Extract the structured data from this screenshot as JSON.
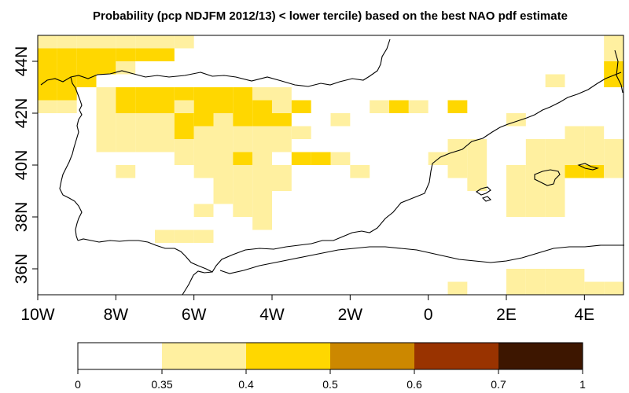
{
  "title": "Probability (pcp NDJFM 2012/13) < lower tercile) based on the best NAO pdf estimate",
  "colors": {
    "background": "#ffffff",
    "coast": "#000000",
    "bins": [
      "#ffffff",
      "#fff0a0",
      "#ffd700",
      "#cc8800",
      "#993300",
      "#3d1600"
    ]
  },
  "chart_data": {
    "type": "heatmap",
    "x_range": [
      -10,
      5
    ],
    "y_range": [
      35,
      45
    ],
    "x_ticks": [
      "10W",
      "8W",
      "6W",
      "4W",
      "2W",
      "0",
      "2E",
      "4E"
    ],
    "y_ticks": [
      "36N",
      "38N",
      "40N",
      "42N",
      "44N"
    ],
    "grid_step_deg": 0.5,
    "colorbar": {
      "breaks": [
        "0",
        "0.35",
        "0.4",
        "0.5",
        "0.6",
        "0.7",
        "1"
      ]
    },
    "cells": [
      {
        "lon": -10.0,
        "lat": 44.5,
        "bin": 1
      },
      {
        "lon": -9.5,
        "lat": 44.5,
        "bin": 1
      },
      {
        "lon": -9.0,
        "lat": 44.5,
        "bin": 1
      },
      {
        "lon": -8.5,
        "lat": 44.5,
        "bin": 1
      },
      {
        "lon": -8.0,
        "lat": 44.5,
        "bin": 1
      },
      {
        "lon": -7.5,
        "lat": 44.5,
        "bin": 1
      },
      {
        "lon": -7.0,
        "lat": 44.5,
        "bin": 1
      },
      {
        "lon": -6.5,
        "lat": 44.5,
        "bin": 1
      },
      {
        "lon": -10.0,
        "lat": 44.0,
        "bin": 2
      },
      {
        "lon": -9.5,
        "lat": 44.0,
        "bin": 2
      },
      {
        "lon": -9.0,
        "lat": 44.0,
        "bin": 2
      },
      {
        "lon": -8.5,
        "lat": 44.0,
        "bin": 2
      },
      {
        "lon": -8.0,
        "lat": 44.0,
        "bin": 2
      },
      {
        "lon": -7.5,
        "lat": 44.0,
        "bin": 2
      },
      {
        "lon": -7.0,
        "lat": 44.0,
        "bin": 2
      },
      {
        "lon": -10.0,
        "lat": 43.5,
        "bin": 2
      },
      {
        "lon": -9.5,
        "lat": 43.5,
        "bin": 2
      },
      {
        "lon": -9.0,
        "lat": 43.5,
        "bin": 2
      },
      {
        "lon": -8.5,
        "lat": 43.5,
        "bin": 2
      },
      {
        "lon": -8.0,
        "lat": 43.5,
        "bin": 1
      },
      {
        "lon": -10.0,
        "lat": 43.0,
        "bin": 2
      },
      {
        "lon": -9.5,
        "lat": 43.0,
        "bin": 2
      },
      {
        "lon": -9.0,
        "lat": 43.0,
        "bin": 2
      },
      {
        "lon": -10.0,
        "lat": 42.5,
        "bin": 2
      },
      {
        "lon": -9.5,
        "lat": 42.5,
        "bin": 2
      },
      {
        "lon": -8.5,
        "lat": 42.5,
        "bin": 1
      },
      {
        "lon": -8.0,
        "lat": 42.5,
        "bin": 2
      },
      {
        "lon": -7.5,
        "lat": 42.5,
        "bin": 2
      },
      {
        "lon": -7.0,
        "lat": 42.5,
        "bin": 2
      },
      {
        "lon": -6.5,
        "lat": 42.5,
        "bin": 2
      },
      {
        "lon": -6.0,
        "lat": 42.5,
        "bin": 2
      },
      {
        "lon": -5.5,
        "lat": 42.5,
        "bin": 2
      },
      {
        "lon": -5.0,
        "lat": 42.5,
        "bin": 2
      },
      {
        "lon": -4.5,
        "lat": 42.5,
        "bin": 1
      },
      {
        "lon": -4.0,
        "lat": 42.5,
        "bin": 1
      },
      {
        "lon": -10.0,
        "lat": 42.0,
        "bin": 1
      },
      {
        "lon": -9.5,
        "lat": 42.0,
        "bin": 1
      },
      {
        "lon": -8.5,
        "lat": 42.0,
        "bin": 1
      },
      {
        "lon": -8.0,
        "lat": 42.0,
        "bin": 2
      },
      {
        "lon": -7.5,
        "lat": 42.0,
        "bin": 2
      },
      {
        "lon": -7.0,
        "lat": 42.0,
        "bin": 2
      },
      {
        "lon": -6.5,
        "lat": 42.0,
        "bin": 1
      },
      {
        "lon": -6.0,
        "lat": 42.0,
        "bin": 2
      },
      {
        "lon": -5.5,
        "lat": 42.0,
        "bin": 2
      },
      {
        "lon": -5.0,
        "lat": 42.0,
        "bin": 2
      },
      {
        "lon": -4.5,
        "lat": 42.0,
        "bin": 2
      },
      {
        "lon": -4.0,
        "lat": 42.0,
        "bin": 1
      },
      {
        "lon": -3.5,
        "lat": 42.0,
        "bin": 2
      },
      {
        "lon": -1.5,
        "lat": 42.0,
        "bin": 1
      },
      {
        "lon": -1.0,
        "lat": 42.0,
        "bin": 2
      },
      {
        "lon": -0.5,
        "lat": 42.0,
        "bin": 1
      },
      {
        "lon": 0.5,
        "lat": 42.0,
        "bin": 2
      },
      {
        "lon": -8.5,
        "lat": 41.5,
        "bin": 1
      },
      {
        "lon": -8.0,
        "lat": 41.5,
        "bin": 1
      },
      {
        "lon": -7.5,
        "lat": 41.5,
        "bin": 1
      },
      {
        "lon": -7.0,
        "lat": 41.5,
        "bin": 1
      },
      {
        "lon": -6.5,
        "lat": 41.5,
        "bin": 2
      },
      {
        "lon": -6.0,
        "lat": 41.5,
        "bin": 2
      },
      {
        "lon": -5.5,
        "lat": 41.5,
        "bin": 1
      },
      {
        "lon": -5.0,
        "lat": 41.5,
        "bin": 2
      },
      {
        "lon": -4.5,
        "lat": 41.5,
        "bin": 2
      },
      {
        "lon": -4.0,
        "lat": 41.5,
        "bin": 2
      },
      {
        "lon": -2.5,
        "lat": 41.5,
        "bin": 1
      },
      {
        "lon": 2.0,
        "lat": 41.5,
        "bin": 1
      },
      {
        "lon": -8.5,
        "lat": 41.0,
        "bin": 1
      },
      {
        "lon": -8.0,
        "lat": 41.0,
        "bin": 1
      },
      {
        "lon": -7.5,
        "lat": 41.0,
        "bin": 1
      },
      {
        "lon": -7.0,
        "lat": 41.0,
        "bin": 1
      },
      {
        "lon": -6.5,
        "lat": 41.0,
        "bin": 2
      },
      {
        "lon": -6.0,
        "lat": 41.0,
        "bin": 1
      },
      {
        "lon": -5.5,
        "lat": 41.0,
        "bin": 1
      },
      {
        "lon": -5.0,
        "lat": 41.0,
        "bin": 1
      },
      {
        "lon": -4.5,
        "lat": 41.0,
        "bin": 1
      },
      {
        "lon": -4.0,
        "lat": 41.0,
        "bin": 1
      },
      {
        "lon": -3.5,
        "lat": 41.0,
        "bin": 1
      },
      {
        "lon": 3.5,
        "lat": 41.0,
        "bin": 1
      },
      {
        "lon": 4.0,
        "lat": 41.0,
        "bin": 1
      },
      {
        "lon": -8.5,
        "lat": 40.5,
        "bin": 1
      },
      {
        "lon": -8.0,
        "lat": 40.5,
        "bin": 1
      },
      {
        "lon": -7.5,
        "lat": 40.5,
        "bin": 1
      },
      {
        "lon": -7.0,
        "lat": 40.5,
        "bin": 1
      },
      {
        "lon": -6.5,
        "lat": 40.5,
        "bin": 1
      },
      {
        "lon": -6.0,
        "lat": 40.5,
        "bin": 1
      },
      {
        "lon": -5.5,
        "lat": 40.5,
        "bin": 1
      },
      {
        "lon": -5.0,
        "lat": 40.5,
        "bin": 1
      },
      {
        "lon": -4.5,
        "lat": 40.5,
        "bin": 1
      },
      {
        "lon": -4.0,
        "lat": 40.5,
        "bin": 1
      },
      {
        "lon": 0.5,
        "lat": 40.5,
        "bin": 1
      },
      {
        "lon": 1.0,
        "lat": 40.5,
        "bin": 1
      },
      {
        "lon": 2.5,
        "lat": 40.5,
        "bin": 1
      },
      {
        "lon": 3.0,
        "lat": 40.5,
        "bin": 1
      },
      {
        "lon": 3.5,
        "lat": 40.5,
        "bin": 1
      },
      {
        "lon": 4.0,
        "lat": 40.5,
        "bin": 1
      },
      {
        "lon": 4.5,
        "lat": 40.5,
        "bin": 1
      },
      {
        "lon": -6.5,
        "lat": 40.0,
        "bin": 1
      },
      {
        "lon": -6.0,
        "lat": 40.0,
        "bin": 1
      },
      {
        "lon": -5.5,
        "lat": 40.0,
        "bin": 1
      },
      {
        "lon": -5.0,
        "lat": 40.0,
        "bin": 2
      },
      {
        "lon": -4.5,
        "lat": 40.0,
        "bin": 1
      },
      {
        "lon": -3.5,
        "lat": 40.0,
        "bin": 2
      },
      {
        "lon": -3.0,
        "lat": 40.0,
        "bin": 2
      },
      {
        "lon": -2.5,
        "lat": 40.0,
        "bin": 1
      },
      {
        "lon": 0.0,
        "lat": 40.0,
        "bin": 1
      },
      {
        "lon": 0.5,
        "lat": 40.0,
        "bin": 1
      },
      {
        "lon": 1.0,
        "lat": 40.0,
        "bin": 1
      },
      {
        "lon": 2.5,
        "lat": 40.0,
        "bin": 1
      },
      {
        "lon": 3.0,
        "lat": 40.0,
        "bin": 1
      },
      {
        "lon": 3.5,
        "lat": 40.0,
        "bin": 1
      },
      {
        "lon": 4.0,
        "lat": 40.0,
        "bin": 1
      },
      {
        "lon": 4.5,
        "lat": 40.0,
        "bin": 1
      },
      {
        "lon": -8.0,
        "lat": 39.5,
        "bin": 1
      },
      {
        "lon": -6.0,
        "lat": 39.5,
        "bin": 1
      },
      {
        "lon": -5.5,
        "lat": 39.5,
        "bin": 1
      },
      {
        "lon": -5.0,
        "lat": 39.5,
        "bin": 1
      },
      {
        "lon": -4.5,
        "lat": 39.5,
        "bin": 1
      },
      {
        "lon": -4.0,
        "lat": 39.5,
        "bin": 1
      },
      {
        "lon": -2.0,
        "lat": 39.5,
        "bin": 1
      },
      {
        "lon": 0.5,
        "lat": 39.5,
        "bin": 1
      },
      {
        "lon": 1.0,
        "lat": 39.5,
        "bin": 1
      },
      {
        "lon": 2.0,
        "lat": 39.5,
        "bin": 1
      },
      {
        "lon": 2.5,
        "lat": 39.5,
        "bin": 1
      },
      {
        "lon": 3.0,
        "lat": 39.5,
        "bin": 1
      },
      {
        "lon": 3.5,
        "lat": 39.5,
        "bin": 2
      },
      {
        "lon": 4.0,
        "lat": 39.5,
        "bin": 2
      },
      {
        "lon": 4.5,
        "lat": 39.5,
        "bin": 1
      },
      {
        "lon": -5.5,
        "lat": 39.0,
        "bin": 1
      },
      {
        "lon": -5.0,
        "lat": 39.0,
        "bin": 1
      },
      {
        "lon": -4.5,
        "lat": 39.0,
        "bin": 1
      },
      {
        "lon": -4.0,
        "lat": 39.0,
        "bin": 1
      },
      {
        "lon": 1.0,
        "lat": 39.0,
        "bin": 1
      },
      {
        "lon": 2.0,
        "lat": 39.0,
        "bin": 1
      },
      {
        "lon": 2.5,
        "lat": 39.0,
        "bin": 1
      },
      {
        "lon": 3.0,
        "lat": 39.0,
        "bin": 1
      },
      {
        "lon": -5.5,
        "lat": 38.5,
        "bin": 1
      },
      {
        "lon": -5.0,
        "lat": 38.5,
        "bin": 1
      },
      {
        "lon": -4.5,
        "lat": 38.5,
        "bin": 1
      },
      {
        "lon": 2.0,
        "lat": 38.5,
        "bin": 1
      },
      {
        "lon": 2.5,
        "lat": 38.5,
        "bin": 1
      },
      {
        "lon": 3.0,
        "lat": 38.5,
        "bin": 1
      },
      {
        "lon": -6.0,
        "lat": 38.0,
        "bin": 1
      },
      {
        "lon": -5.0,
        "lat": 38.0,
        "bin": 1
      },
      {
        "lon": -4.5,
        "lat": 38.0,
        "bin": 1
      },
      {
        "lon": 2.0,
        "lat": 38.0,
        "bin": 1
      },
      {
        "lon": 2.5,
        "lat": 38.0,
        "bin": 1
      },
      {
        "lon": 3.0,
        "lat": 38.0,
        "bin": 1
      },
      {
        "lon": -4.5,
        "lat": 37.5,
        "bin": 1
      },
      {
        "lon": -7.0,
        "lat": 37.0,
        "bin": 1
      },
      {
        "lon": -6.5,
        "lat": 37.0,
        "bin": 1
      },
      {
        "lon": -6.0,
        "lat": 37.0,
        "bin": 1
      },
      {
        "lon": 2.0,
        "lat": 35.5,
        "bin": 1
      },
      {
        "lon": 2.5,
        "lat": 35.5,
        "bin": 1
      },
      {
        "lon": 3.0,
        "lat": 35.5,
        "bin": 1
      },
      {
        "lon": 3.5,
        "lat": 35.5,
        "bin": 1
      },
      {
        "lon": 0.5,
        "lat": 35.0,
        "bin": 1
      },
      {
        "lon": 2.0,
        "lat": 35.0,
        "bin": 1
      },
      {
        "lon": 2.5,
        "lat": 35.0,
        "bin": 1
      },
      {
        "lon": 3.0,
        "lat": 35.0,
        "bin": 1
      },
      {
        "lon": 3.5,
        "lat": 35.0,
        "bin": 1
      },
      {
        "lon": 4.0,
        "lat": 35.0,
        "bin": 1
      },
      {
        "lon": 4.5,
        "lat": 35.0,
        "bin": 1
      },
      {
        "lon": 3.0,
        "lat": 43.0,
        "bin": 1
      },
      {
        "lon": 4.5,
        "lat": 44.5,
        "bin": 1
      },
      {
        "lon": 4.5,
        "lat": 44.0,
        "bin": 1
      },
      {
        "lon": 4.5,
        "lat": 43.5,
        "bin": 2
      },
      {
        "lon": 4.5,
        "lat": 43.0,
        "bin": 2
      }
    ]
  }
}
